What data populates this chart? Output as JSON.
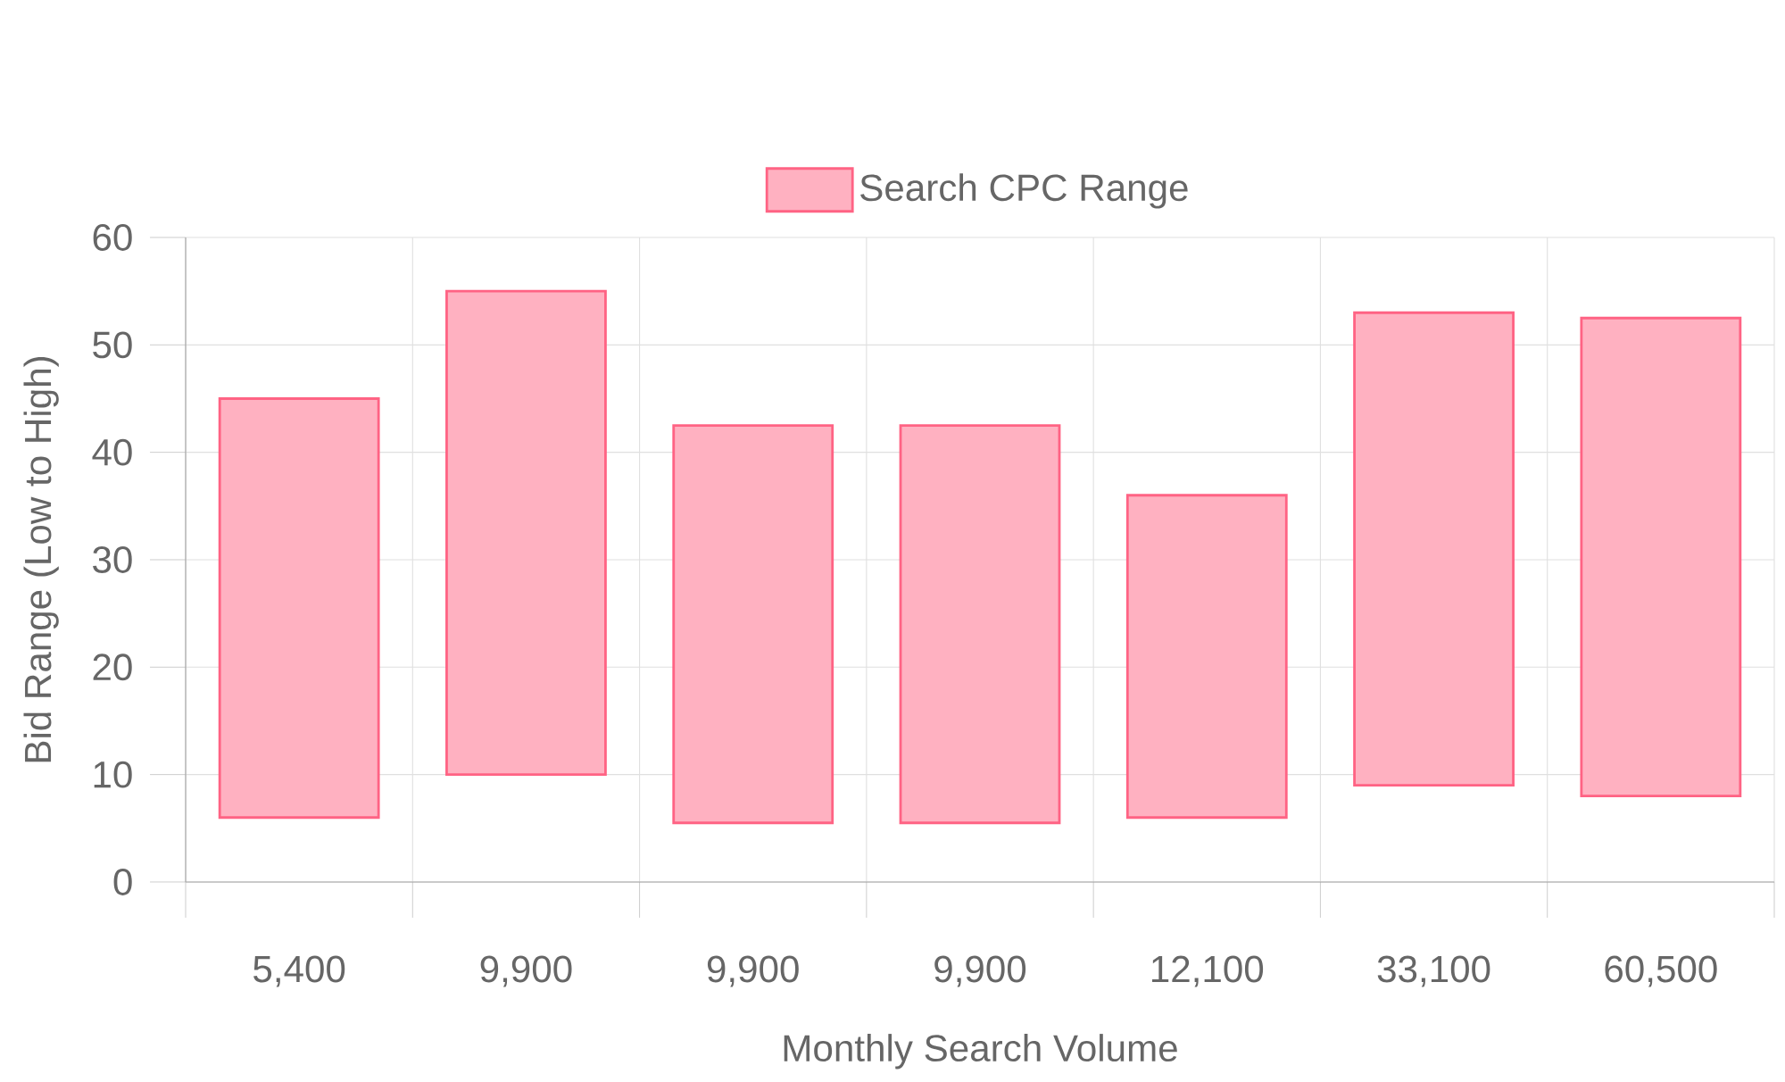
{
  "chart_data": {
    "type": "bar",
    "xlabel": "Monthly Search Volume",
    "ylabel": "Bid Range (Low to High)",
    "categories": [
      "5,400",
      "9,900",
      "9,900",
      "9,900",
      "12,100",
      "33,100",
      "60,500"
    ],
    "series": [
      {
        "name": "Search CPC Range",
        "color": "#ff6384",
        "values": [
          39,
          45,
          37,
          37,
          30,
          44,
          44.5
        ],
        "base": [
          6,
          10,
          5.5,
          5.5,
          6,
          9,
          8
        ]
      }
    ],
    "ylim": [
      0,
      60
    ],
    "yticks": [
      0,
      10,
      20,
      30,
      40,
      50,
      60
    ],
    "grid": true,
    "legend": "top"
  }
}
